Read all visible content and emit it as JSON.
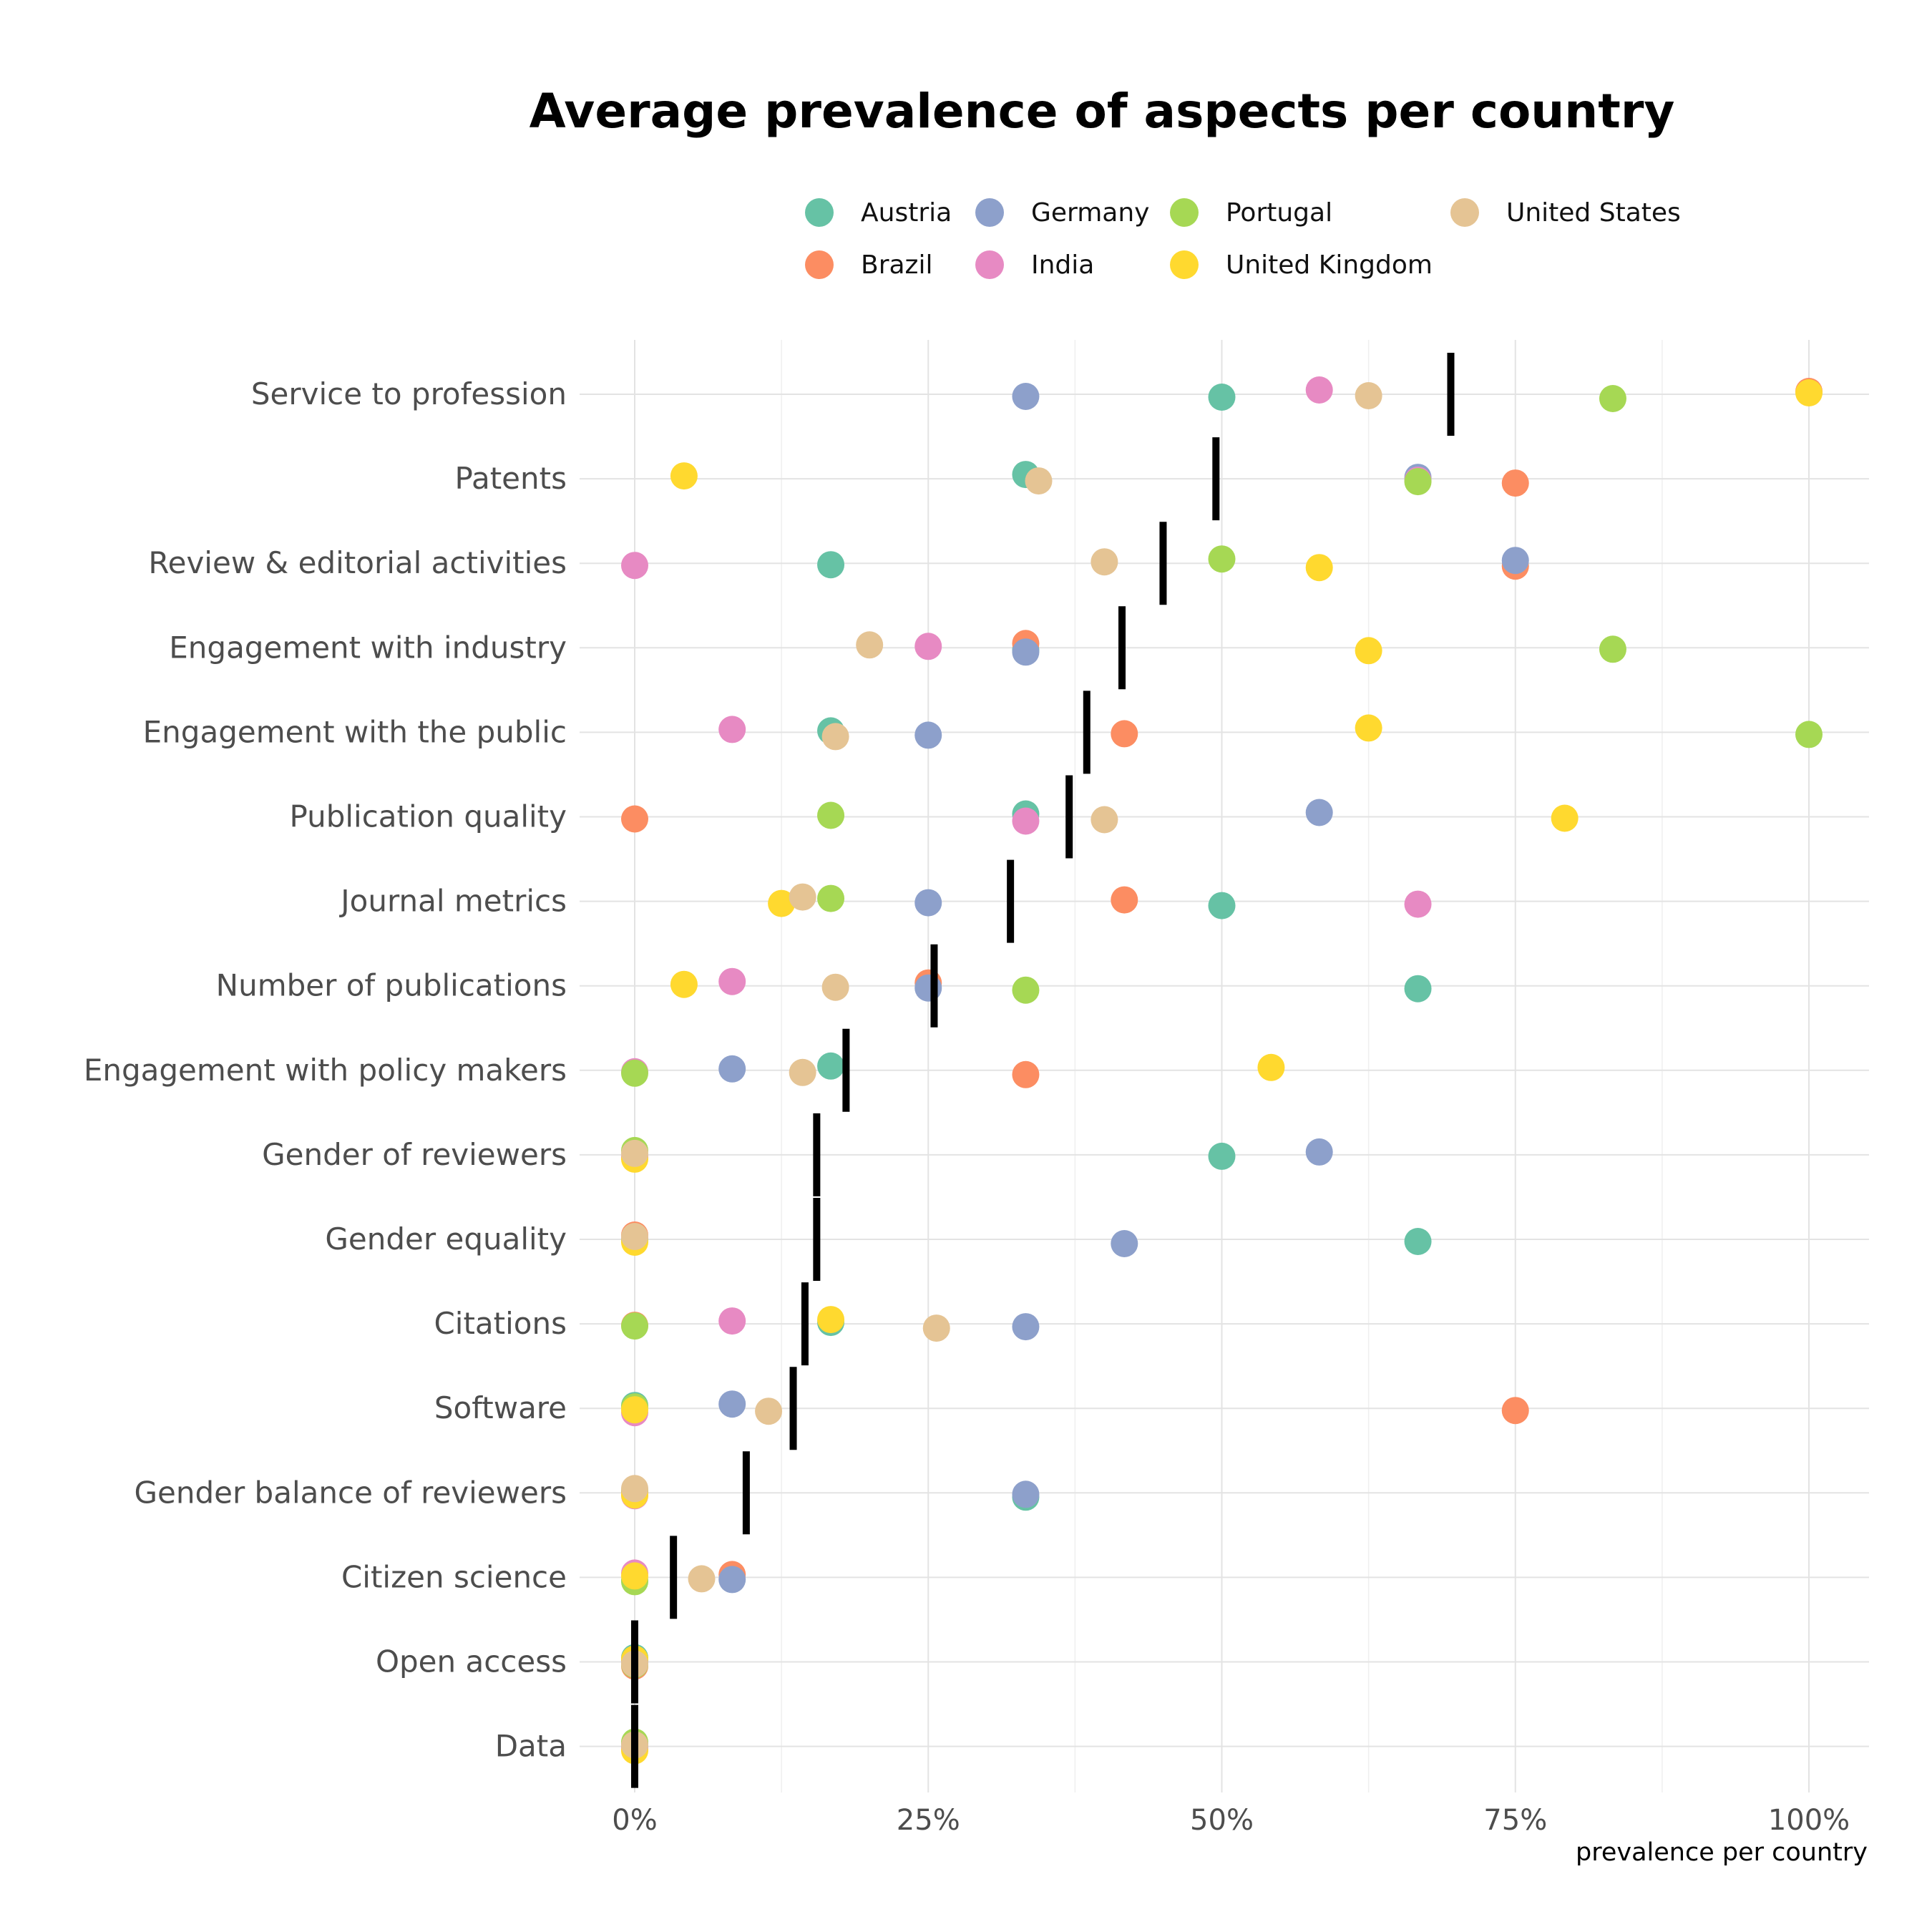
{
  "chart_data": {
    "type": "scatter",
    "title": "Average prevalence of aspects per country",
    "xlabel": "prevalence per country",
    "ylabel": "",
    "xlim": [
      0,
      1
    ],
    "x_ticks": [
      {
        "value": 0,
        "label": "0%"
      },
      {
        "value": 0.25,
        "label": "25%"
      },
      {
        "value": 0.5,
        "label": "50%"
      },
      {
        "value": 0.75,
        "label": "75%"
      },
      {
        "value": 1,
        "label": "100%"
      }
    ],
    "grid": true,
    "legend_position": "top",
    "colors": {
      "Austria": "#66c2a5",
      "Brazil": "#fc8d62",
      "Germany": "#8da0cb",
      "India": "#e78ac3",
      "Portugal": "#a6d854",
      "United Kingdom": "#ffd92f",
      "United States": "#e5c494"
    },
    "legend_order": [
      "Austria",
      "Brazil",
      "Germany",
      "India",
      "Portugal",
      "United Kingdom",
      "United States"
    ],
    "categories": [
      "Service to profession",
      "Patents",
      "Review & editorial activities",
      "Engagement with industry",
      "Engagement with the public",
      "Publication quality",
      "Journal metrics",
      "Number of publications",
      "Engagement with policy makers",
      "Gender of reviewers",
      "Gender equality",
      "Citations",
      "Software",
      "Gender balance of reviewers",
      "Citizen science",
      "Open access",
      "Data"
    ],
    "means": [
      0.695,
      0.495,
      0.45,
      0.415,
      0.385,
      0.37,
      0.32,
      0.255,
      0.18,
      0.155,
      0.155,
      0.145,
      0.135,
      0.095,
      0.033,
      0.0,
      0.0
    ],
    "series": [
      {
        "name": "Austria",
        "values": [
          0.5,
          0.333,
          0.167,
          0.333,
          0.167,
          0.333,
          0.5,
          0.667,
          0.167,
          0.5,
          0.667,
          0.167,
          0.0,
          0.333,
          0.0,
          0.0,
          0.0
        ]
      },
      {
        "name": "Brazil",
        "values": [
          1.0,
          0.75,
          0.75,
          0.333,
          0.417,
          0.0,
          0.417,
          0.25,
          0.333,
          0.0,
          0.0,
          0.0,
          0.75,
          0.0,
          0.083,
          0.0,
          0.0
        ]
      },
      {
        "name": "Germany",
        "values": [
          0.333,
          0.667,
          0.75,
          0.333,
          0.25,
          0.583,
          0.25,
          0.25,
          0.083,
          0.583,
          0.417,
          0.333,
          0.083,
          0.333,
          0.083,
          0.0,
          0.0
        ]
      },
      {
        "name": "India",
        "values": [
          0.583,
          0.667,
          0.0,
          0.25,
          0.083,
          0.333,
          0.667,
          0.083,
          0.0,
          0.0,
          0.0,
          0.083,
          0.0,
          0.0,
          0.0,
          0.0,
          0.0
        ]
      },
      {
        "name": "Portugal",
        "values": [
          0.833,
          0.667,
          0.5,
          0.833,
          1.0,
          0.167,
          0.167,
          0.333,
          0.0,
          0.0,
          0.0,
          0.0,
          0.0,
          0.0,
          0.0,
          0.0,
          0.0
        ]
      },
      {
        "name": "United Kingdom",
        "values": [
          1.0,
          0.042,
          0.583,
          0.625,
          0.625,
          0.792,
          0.125,
          0.042,
          0.542,
          0.0,
          0.0,
          0.167,
          0.0,
          0.0,
          0.0,
          0.0,
          0.0
        ]
      },
      {
        "name": "United States",
        "values": [
          0.625,
          0.344,
          0.4,
          0.2,
          0.171,
          0.4,
          0.143,
          0.171,
          0.143,
          0.0,
          0.0,
          0.257,
          0.114,
          0.0,
          0.057,
          0.0,
          0.0
        ]
      }
    ]
  }
}
